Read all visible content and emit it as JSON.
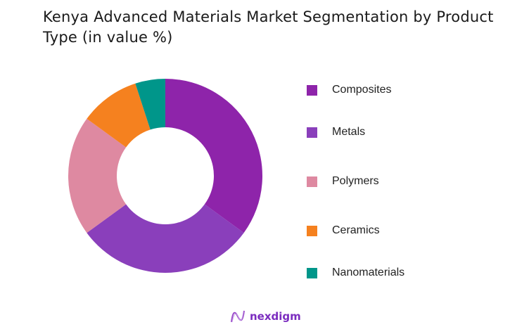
{
  "title": "Kenya Advanced Materials Market Segmentation by Product Type (in value %)",
  "chart_data": {
    "type": "pie",
    "variant": "donut",
    "title": "Kenya Advanced Materials Market Segmentation by Product Type (in value %)",
    "categories": [
      "Composites",
      "Metals",
      "Polymers",
      "Ceramics",
      "Nanomaterials"
    ],
    "values": [
      35,
      30,
      20,
      10,
      5
    ],
    "colors": [
      "#8e24aa",
      "#8a3fbb",
      "#de89a1",
      "#f5811f",
      "#00968a"
    ],
    "start_angle": "12 o'clock, clockwise",
    "legend_position": "right"
  },
  "legend": {
    "items": [
      {
        "label": "Composites",
        "color": "#8e24aa"
      },
      {
        "label": "Metals",
        "color": "#8a3fbb"
      },
      {
        "label": "Polymers",
        "color": "#de89a1"
      },
      {
        "label": "Ceramics",
        "color": "#f5811f"
      },
      {
        "label": "Nanomaterials",
        "color": "#00968a"
      }
    ]
  },
  "logo": {
    "text": "nexdigm"
  }
}
